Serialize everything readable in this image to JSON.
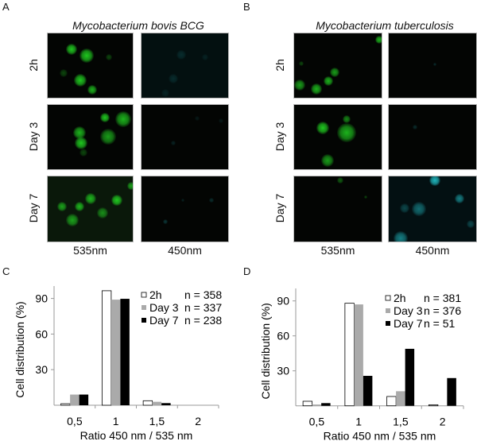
{
  "panels": {
    "A": {
      "letter": "A",
      "title": "Mycobacterium bovis BCG"
    },
    "B": {
      "letter": "B",
      "title": "Mycobacterium tuberculosis"
    },
    "C": {
      "letter": "C"
    },
    "D": {
      "letter": "D"
    }
  },
  "rows": [
    "2h",
    "Day 3",
    "Day 7"
  ],
  "columns": [
    "535nm",
    "450nm"
  ],
  "colors": {
    "green_channel": "#22dd22",
    "blue_channel": "#22c8d0",
    "series_2h": "#ffffff",
    "series_day3": "#aaaaaa",
    "series_day7": "#000000"
  },
  "chart_data": [
    {
      "panel": "C",
      "type": "bar",
      "categories": [
        "0,5",
        "1",
        "1,5",
        "2"
      ],
      "xlabel": "Ratio 450 nm / 535 nm",
      "ylabel": "Cell distribution (%)",
      "ylim": [
        0,
        100
      ],
      "yticks": [
        30,
        60,
        90
      ],
      "grid": false,
      "legend_placement": "top-right",
      "series": [
        {
          "name": "2h",
          "n": "n = 358",
          "values": [
            1.3,
            96.5,
            3.8,
            0
          ]
        },
        {
          "name": "Day 3",
          "n": "n = 337",
          "values": [
            9,
            89,
            2.9,
            0
          ]
        },
        {
          "name": "Day 7",
          "n": "n = 238",
          "values": [
            9,
            89.7,
            1.8,
            0
          ]
        }
      ]
    },
    {
      "panel": "D",
      "type": "bar",
      "categories": [
        "0,5",
        "1",
        "1,5",
        "2"
      ],
      "xlabel": "Ratio 450 nm / 535 nm",
      "ylabel": "Cell distribution (%)",
      "ylim": [
        0,
        100
      ],
      "yticks": [
        30,
        60,
        90
      ],
      "grid": false,
      "legend_placement": "top-right",
      "series": [
        {
          "name": "2h",
          "n": "n = 381",
          "values": [
            3.9,
            88,
            8,
            0.9
          ]
        },
        {
          "name": "Day 3",
          "n": "n = 376",
          "values": [
            1.1,
            87,
            12.5,
            0
          ]
        },
        {
          "name": "Day 7",
          "n": "n = 51",
          "values": [
            2.3,
            25.7,
            48.9,
            23.8
          ]
        }
      ]
    }
  ]
}
